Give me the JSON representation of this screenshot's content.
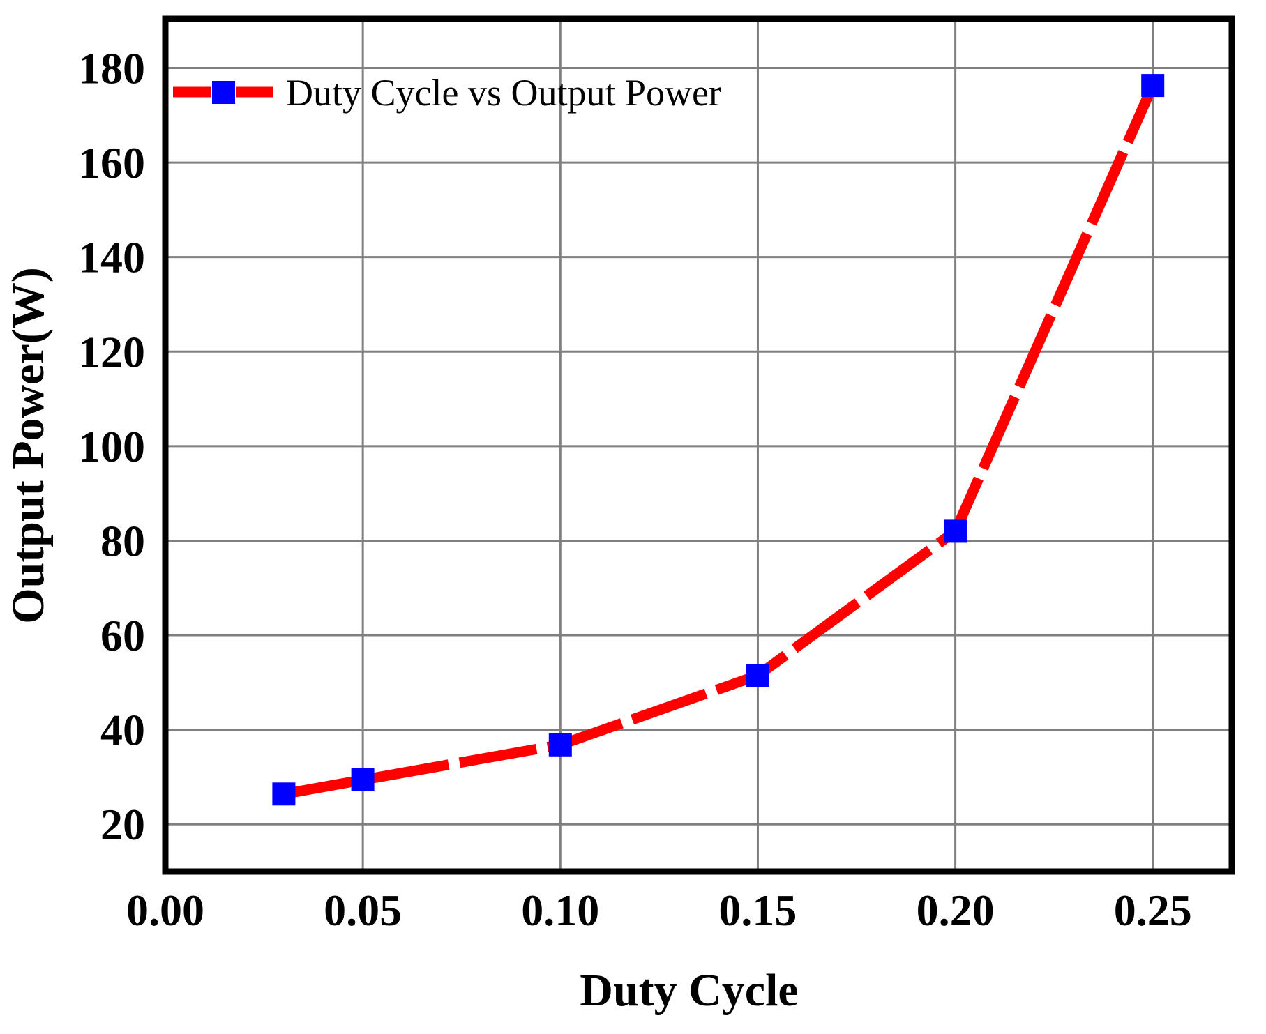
{
  "chart_data": {
    "type": "line",
    "title": "",
    "xlabel": "Duty Cycle",
    "ylabel": "Output Power(W)",
    "series": [
      {
        "name": "Duty Cycle vs Output Power",
        "x": [
          0.03,
          0.05,
          0.1,
          0.15,
          0.2,
          0.25
        ],
        "y": [
          26.4,
          29.4,
          36.8,
          51.5,
          82.0,
          176.3
        ],
        "line_style": "dashed",
        "marker": "square"
      }
    ],
    "xlim": [
      0,
      0.27
    ],
    "ylim": [
      10,
      190.4
    ],
    "xticks": {
      "values": [
        0,
        0.05,
        0.1,
        0.15,
        0.2,
        0.25
      ],
      "labels": [
        "0.00",
        "0.05",
        "0.10",
        "0.15",
        "0.20",
        "0.25"
      ]
    },
    "yticks": {
      "values": [
        20,
        40,
        60,
        80,
        100,
        120,
        140,
        160,
        180
      ],
      "labels": [
        "20",
        "40",
        "60",
        "80",
        "100",
        "120",
        "140",
        "160",
        "180"
      ]
    },
    "grid": true,
    "legend_position": "top-left",
    "colors": {
      "line": "#FF0000",
      "marker": "#0000FF",
      "grid": "#808080",
      "frame": "#000000",
      "background": "#FFFFFF",
      "text": "#000000"
    }
  }
}
